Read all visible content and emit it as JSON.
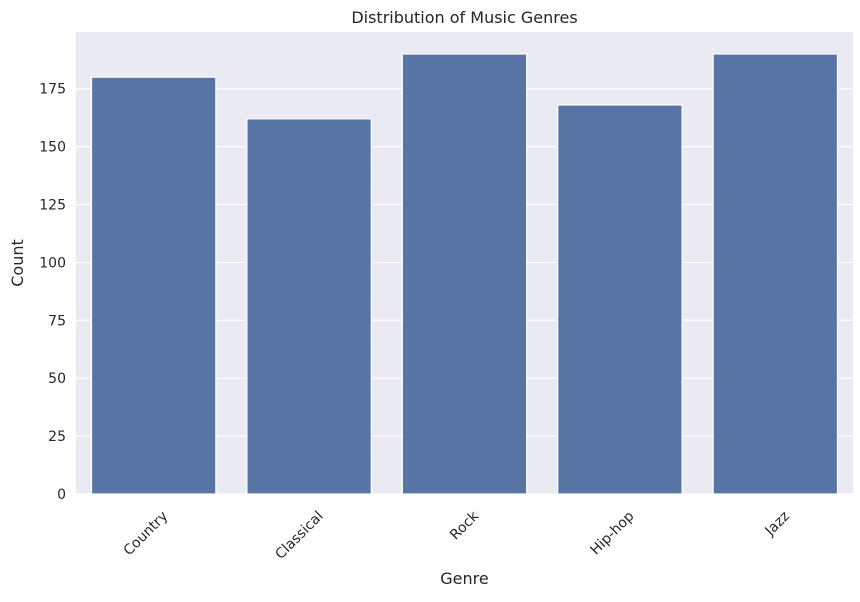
{
  "chart_data": {
    "type": "bar",
    "title": "Distribution of Music Genres",
    "xlabel": "Genre",
    "ylabel": "Count",
    "categories": [
      "Country",
      "Classical",
      "Rock",
      "Hip-hop",
      "Jazz"
    ],
    "values": [
      180,
      162,
      190,
      168,
      190
    ],
    "ylim": [
      0,
      199.5
    ],
    "yticks": [
      0,
      25,
      50,
      75,
      100,
      125,
      150,
      175
    ],
    "grid": true,
    "legend": "none",
    "colors": {
      "bar": "#5874a4",
      "plot_background": "#eaeaf2",
      "grid": "#ffffff"
    }
  }
}
